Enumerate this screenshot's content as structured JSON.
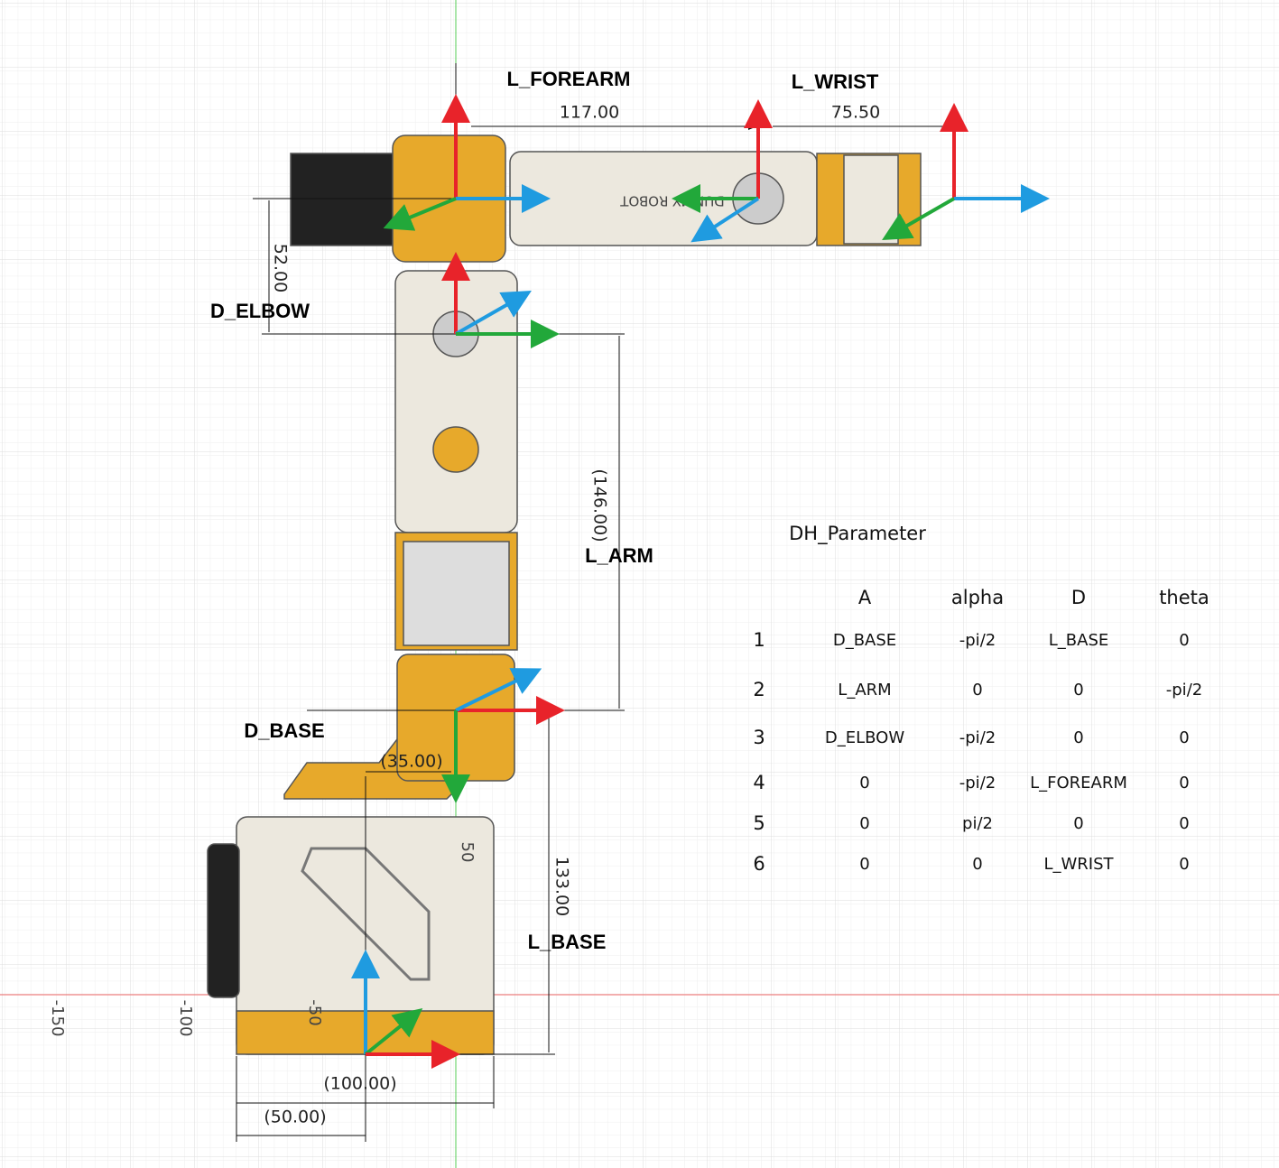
{
  "labels": {
    "l_forearm": "L_FOREARM",
    "l_wrist": "L_WRIST",
    "d_elbow": "D_ELBOW",
    "l_arm": "L_ARM",
    "d_base": "D_BASE",
    "l_base": "L_BASE"
  },
  "dimensions": {
    "forearm": "117.00",
    "wrist": "75.50",
    "elbow": "52.00",
    "arm": "(146.00)",
    "base_offset": "(35.00)",
    "base_height": "133.00",
    "base_width": "(100.00)",
    "half_width": "(50.00)"
  },
  "axis_labels": {
    "x_neg150": "-150",
    "x_neg100": "-100",
    "x_neg50": "-50",
    "y_50": "50"
  },
  "part_text": "DUMMY ROBOT",
  "table": {
    "title": "DH_Parameter",
    "headers": [
      "A",
      "alpha",
      "D",
      "theta"
    ],
    "rows": [
      [
        "1",
        "D_BASE",
        "-pi/2",
        "L_BASE",
        "0"
      ],
      [
        "2",
        "L_ARM",
        "0",
        "0",
        "-pi/2"
      ],
      [
        "3",
        "D_ELBOW",
        "-pi/2",
        "0",
        "0"
      ],
      [
        "4",
        "0",
        "-pi/2",
        "L_FOREARM",
        "0"
      ],
      [
        "5",
        "0",
        "pi/2",
        "0",
        "0"
      ],
      [
        "6",
        "0",
        "0",
        "L_WRIST",
        "0"
      ]
    ]
  }
}
